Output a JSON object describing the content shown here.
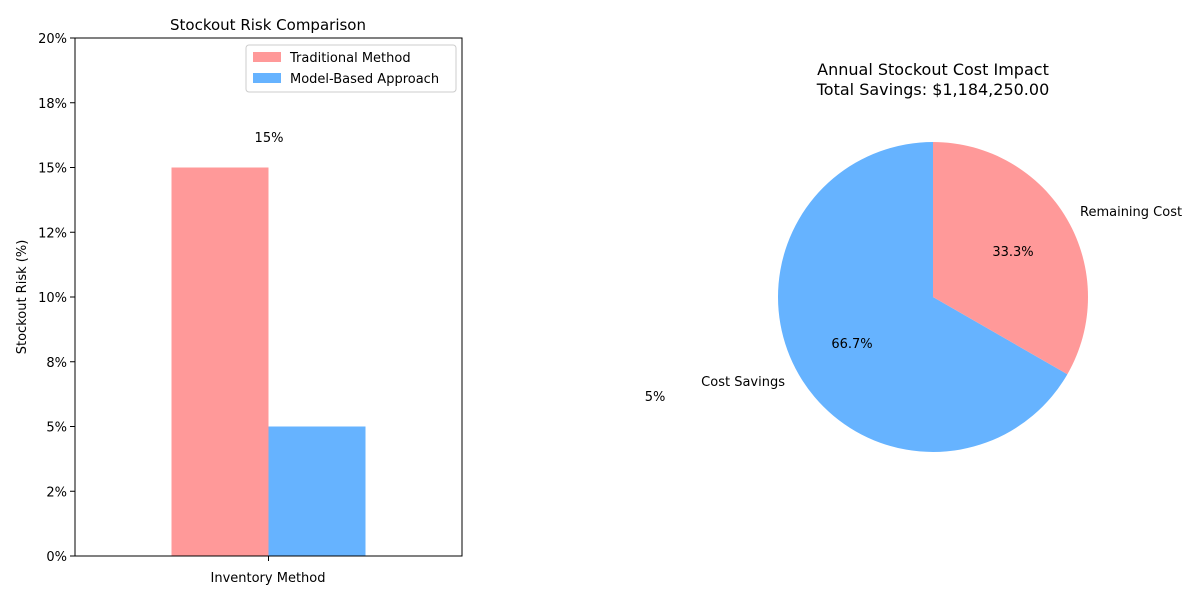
{
  "chart_data": [
    {
      "type": "bar",
      "title": "Stockout Risk Comparison",
      "xlabel": "Inventory Method",
      "ylabel": "Stockout Risk (%)",
      "ylim": [
        0,
        20
      ],
      "yticks": [
        0,
        2.5,
        5,
        7.5,
        10,
        12.5,
        15,
        17.5,
        20
      ],
      "ytick_labels": [
        "0%",
        "2%",
        "5%",
        "8%",
        "10%",
        "12%",
        "15%",
        "18%",
        "20%"
      ],
      "series": [
        {
          "name": "Traditional Method",
          "value": 15,
          "color": "#ff9999",
          "data_label": "15%"
        },
        {
          "name": "Model-Based Approach",
          "value": 5,
          "color": "#66b3ff",
          "data_label": "5%"
        }
      ],
      "legend": "top-right",
      "grid": false
    },
    {
      "type": "pie",
      "title": "Annual Stockout Cost Impact",
      "subtitle": "Total Savings: $1,184,250.00",
      "slices": [
        {
          "label": "Remaining Cost",
          "value": 33.3,
          "pct_label": "33.3%",
          "color": "#ff9999"
        },
        {
          "label": "Cost Savings",
          "value": 66.7,
          "pct_label": "66.7%",
          "color": "#66b3ff"
        }
      ]
    }
  ]
}
